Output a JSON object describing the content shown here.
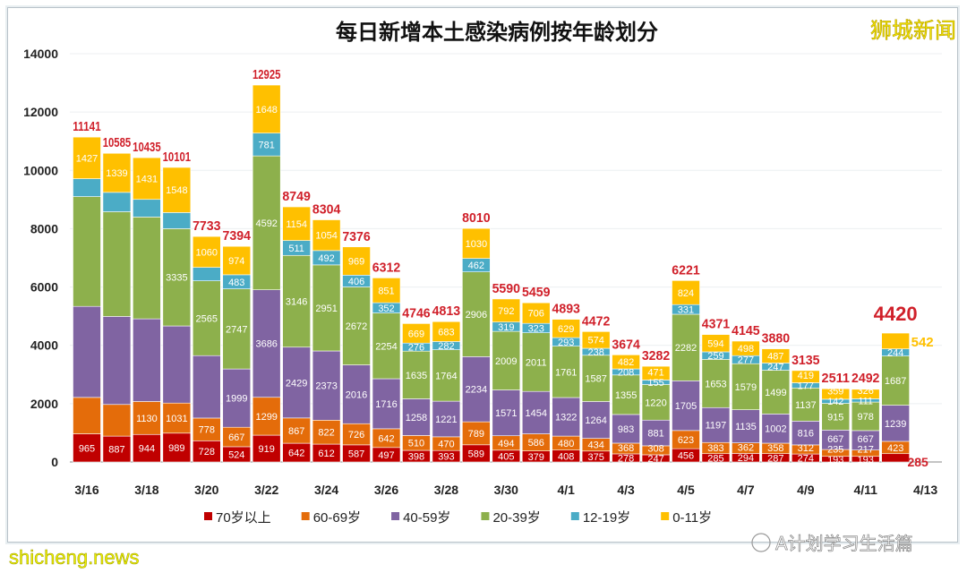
{
  "chart_data": {
    "type": "bar",
    "stacked": true,
    "title": "每日新增本土感染病例按年龄划分",
    "xlabel": "",
    "ylabel": "",
    "ylim": [
      0,
      14000
    ],
    "yticks": [
      0,
      2000,
      4000,
      6000,
      8000,
      10000,
      12000,
      14000
    ],
    "grid": true,
    "legend_position": "bottom",
    "categories": [
      "3/16",
      "3/17",
      "3/18",
      "3/19",
      "3/20",
      "3/21",
      "3/22",
      "3/23",
      "3/24",
      "3/25",
      "3/26",
      "3/27",
      "3/28",
      "3/29",
      "3/30",
      "3/31",
      "4/1",
      "4/2",
      "4/3",
      "4/4",
      "4/5",
      "4/6",
      "4/7",
      "4/8",
      "4/9",
      "4/10",
      "4/11",
      "4/12"
    ],
    "x_tick_labels": [
      "3/16",
      "3/18",
      "3/20",
      "3/22",
      "3/24",
      "3/26",
      "3/28",
      "3/30",
      "4/1",
      "4/3",
      "4/5",
      "4/7",
      "4/9",
      "4/11",
      "4/13"
    ],
    "totals": [
      11141,
      10585,
      10435,
      10101,
      7733,
      7394,
      12925,
      8749,
      8304,
      7376,
      6312,
      4746,
      4813,
      8010,
      5590,
      5459,
      4893,
      4472,
      3674,
      3282,
      6221,
      4371,
      4145,
      3880,
      3135,
      2511,
      2492,
      4420
    ],
    "series": [
      {
        "name": "70岁以上",
        "color": "#c00000",
        "values": [
          965,
          887,
          944,
          989,
          728,
          524,
          919,
          642,
          612,
          587,
          497,
          398,
          393,
          589,
          405,
          379,
          408,
          375,
          278,
          247,
          456,
          285,
          294,
          287,
          274,
          193,
          193,
          285
        ]
      },
      {
        "name": "60-69岁",
        "color": "#e46c0a",
        "values": [
          1249,
          1085,
          1130,
          1031,
          778,
          667,
          1299,
          867,
          822,
          726,
          642,
          510,
          470,
          789,
          494,
          586,
          480,
          434,
          368,
          308,
          623,
          383,
          362,
          358,
          312,
          235,
          217,
          423
        ]
      },
      {
        "name": "40-59岁",
        "color": "#8064a2",
        "values": [
          3122,
          3019,
          2835,
          2645,
          2141,
          1999,
          3686,
          2429,
          2373,
          2016,
          1716,
          1258,
          1221,
          2234,
          1571,
          1454,
          1322,
          1264,
          983,
          881,
          1705,
          1197,
          1135,
          1002,
          816,
          667,
          667,
          1239
        ]
      },
      {
        "name": "20-39岁",
        "color": "#8db04c",
        "values": [
          3764,
          3590,
          3491,
          3335,
          2565,
          2747,
          4592,
          3146,
          2951,
          2672,
          2254,
          1635,
          1764,
          2906,
          2009,
          2011,
          1761,
          1587,
          1355,
          1220,
          2282,
          1653,
          1579,
          1499,
          1137,
          915,
          978,
          1687
        ]
      },
      {
        "name": "12-19岁",
        "color": "#4bacc6",
        "values": [
          614,
          665,
          604,
          553,
          461,
          483,
          781,
          511,
          492,
          406,
          352,
          276,
          282,
          462,
          319,
          323,
          293,
          238,
          208,
          155,
          331,
          259,
          277,
          247,
          177,
          142,
          111,
          244
        ]
      },
      {
        "name": "0-11岁",
        "color": "#ffc000",
        "values": [
          1427,
          1339,
          1431,
          1548,
          1060,
          974,
          1648,
          1154,
          1054,
          969,
          851,
          669,
          683,
          1030,
          792,
          706,
          629,
          574,
          482,
          471,
          824,
          594,
          498,
          487,
          419,
          359,
          326,
          542
        ]
      }
    ],
    "unlabeled_points": [
      [
        1,
        0
      ],
      [
        2,
        0
      ],
      [
        3,
        0
      ],
      [
        4,
        0
      ],
      [
        1,
        1
      ],
      [
        2,
        1
      ],
      [
        3,
        1
      ],
      [
        4,
        1
      ],
      [
        2,
        2
      ],
      [
        3,
        2
      ],
      [
        4,
        2
      ],
      [
        2,
        3
      ],
      [
        4,
        3
      ],
      [
        2,
        4
      ],
      [
        4,
        4
      ]
    ]
  },
  "watermark": "狮城新闻",
  "site_watermark": "shicheng.news",
  "account_watermark": "A计划学习生活篇"
}
